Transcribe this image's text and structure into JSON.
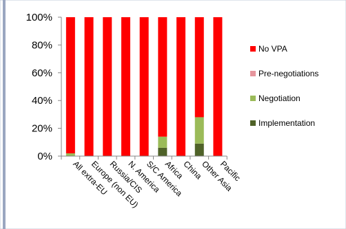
{
  "chart_data": {
    "type": "bar",
    "stacked": true,
    "percent_stacked": true,
    "categories": [
      "All extra-EU",
      "Europe (non EU)",
      "Russia/CIS",
      "N. America",
      "S/C America",
      "Africa",
      "China",
      "Other Asia",
      "Pacific"
    ],
    "series": [
      {
        "name": "Implementation",
        "color": "#4f6228",
        "values": [
          0,
          0,
          0,
          0,
          0,
          6,
          0,
          9,
          0
        ]
      },
      {
        "name": "Negotiation",
        "color": "#9bbb59",
        "values": [
          2,
          0,
          0,
          0,
          0,
          8,
          0,
          19,
          0
        ]
      },
      {
        "name": "Pre-negotiations",
        "color": "#e6959d",
        "values": [
          0,
          0,
          0,
          0,
          0,
          0,
          0,
          0,
          0
        ]
      },
      {
        "name": "No VPA",
        "color": "#ff0000",
        "values": [
          98,
          100,
          100,
          100,
          100,
          86,
          100,
          72,
          100
        ]
      }
    ],
    "legend_order": [
      "No VPA",
      "Pre-negotiations",
      "Negotiation",
      "Implementation"
    ],
    "yticks": [
      "0%",
      "20%",
      "40%",
      "60%",
      "80%",
      "100%"
    ],
    "ylim": [
      0,
      100
    ],
    "grid": false,
    "legend_position": "right"
  }
}
